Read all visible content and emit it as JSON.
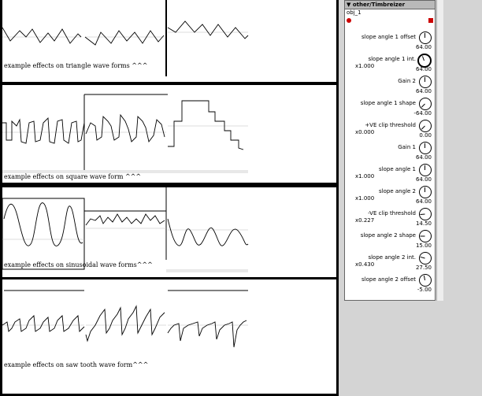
{
  "panels": [
    {
      "caption": "example effects on triangle wave forms ^^^"
    },
    {
      "caption": "example effects on square wave form ^^^"
    },
    {
      "caption": "example effects on sinusoidal wave forms^^^"
    },
    {
      "caption": "example effects on saw tooth wave form^^^"
    }
  ],
  "object": {
    "title": "▼ other/Timbreizer",
    "name": "obj_1",
    "params": [
      {
        "label": "slope angle 1 offset",
        "mult": "",
        "value": "64.00"
      },
      {
        "label": "slope angle 1 int.",
        "mult": "x1.000",
        "value": "64.00"
      },
      {
        "label": "Gain 2",
        "mult": "",
        "value": "64.00"
      },
      {
        "label": "slope angle 1 shape",
        "mult": "",
        "value": "-64.00"
      },
      {
        "label": "+VE clip threshold",
        "mult": "x0.000",
        "value": "0.00"
      },
      {
        "label": "Gain 1",
        "mult": "",
        "value": "64.00"
      },
      {
        "label": "slope angle 1",
        "mult": "x1.000",
        "value": "64.00"
      },
      {
        "label": "slope angle 2",
        "mult": "x1.000",
        "value": "64.00"
      },
      {
        "label": "-VE clip threshold",
        "mult": "x0.227",
        "value": "14.50"
      },
      {
        "label": "slope angle 2 shape",
        "mult": "",
        "value": "15.00"
      },
      {
        "label": "slope angle 2 int.",
        "mult": "x0.430",
        "value": "27.50"
      },
      {
        "label": "slope angle 2 offset",
        "mult": "",
        "value": "-5.00"
      }
    ]
  }
}
